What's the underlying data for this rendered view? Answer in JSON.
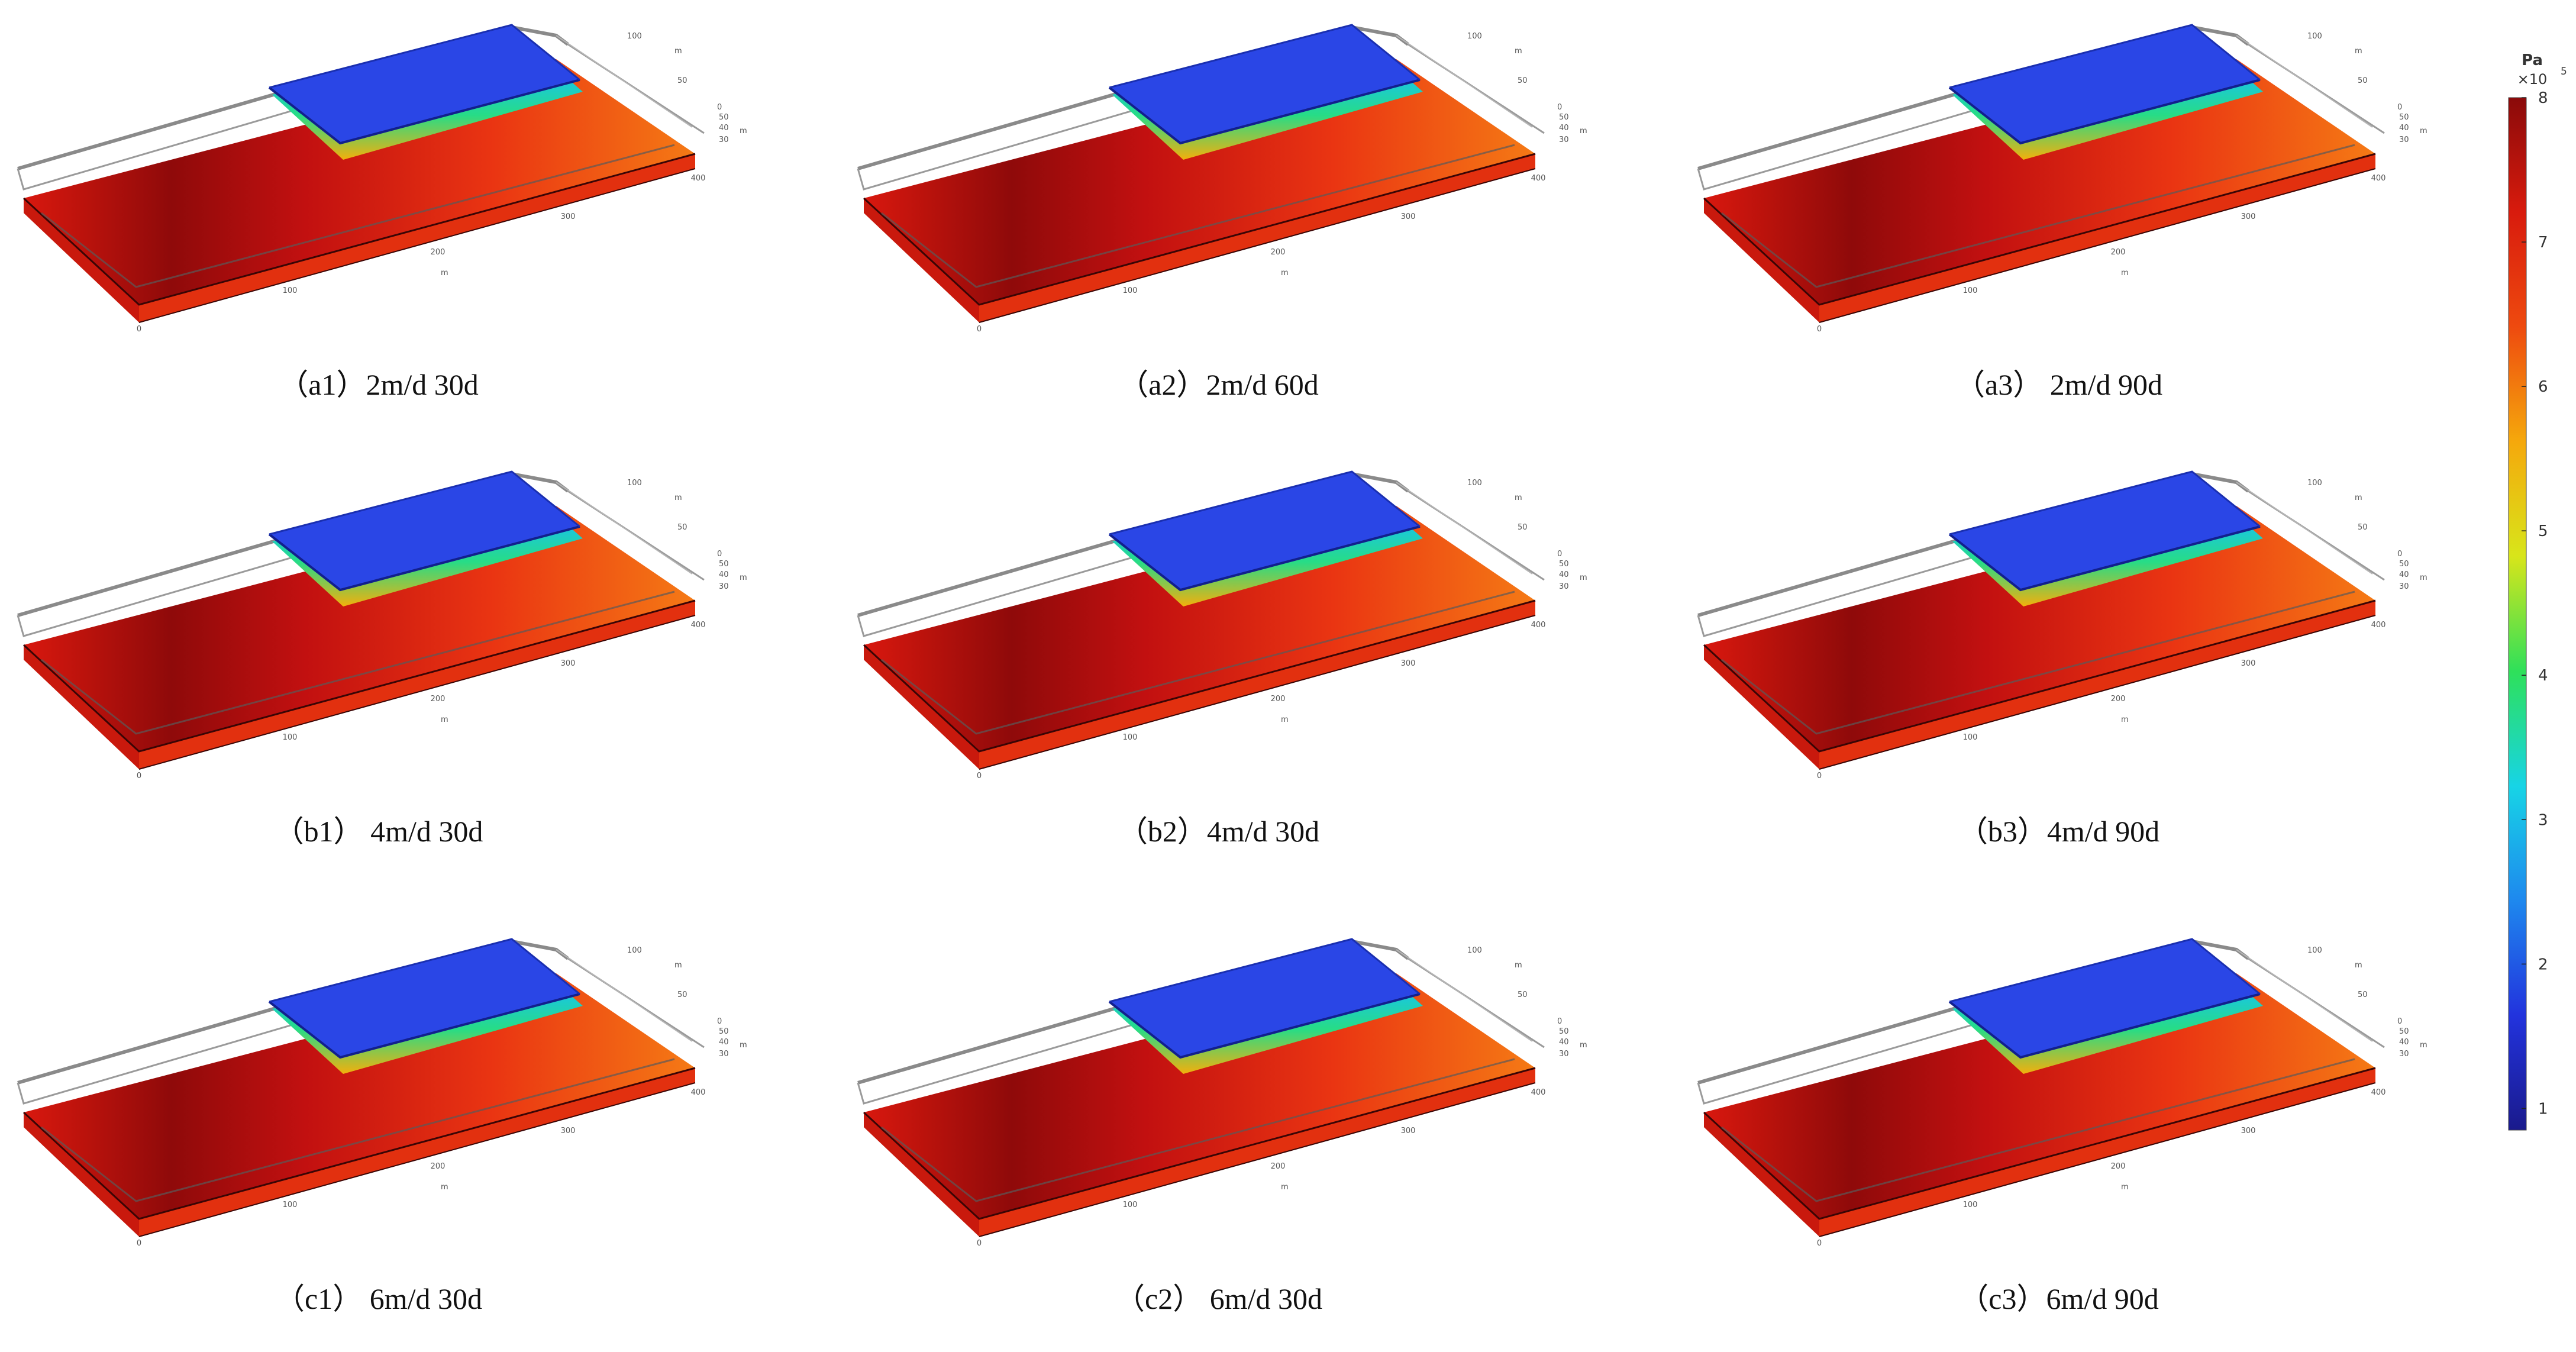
{
  "panels": [
    {
      "caption": "（a1）2m/d 30d"
    },
    {
      "caption": "（a2）2m/d 60d"
    },
    {
      "caption": "（a3） 2m/d 90d"
    },
    {
      "caption": "（b1） 4m/d 30d"
    },
    {
      "caption": "（b2）4m/d 30d"
    },
    {
      "caption": "（b3）4m/d 90d"
    },
    {
      "caption": "（c1） 6m/d 30d"
    },
    {
      "caption": "（c2） 6m/d 30d"
    },
    {
      "caption": "（c3）6m/d 90d"
    }
  ],
  "axes": {
    "x_ticks": [
      "0",
      "100",
      "200",
      "300",
      "400"
    ],
    "x_unit": "m",
    "y_ticks": [
      "50",
      "100"
    ],
    "y_unit": "m",
    "z_ticks": [
      "30",
      "40",
      "50",
      "0"
    ],
    "z_unit": "m"
  },
  "colorbar": {
    "unit": "Pa",
    "multiplier": "×10",
    "exponent": "5",
    "ticks": [
      "8",
      "7",
      "6",
      "5",
      "4",
      "3",
      "2",
      "1"
    ],
    "range": [
      0.85,
      8
    ],
    "colors": [
      "#1a1a8c",
      "#2233dd",
      "#1e88ee",
      "#17d4e6",
      "#2ee05a",
      "#d8e51a",
      "#f5a80c",
      "#ee4a0f",
      "#d81b0d",
      "#8a0a0a"
    ]
  }
}
